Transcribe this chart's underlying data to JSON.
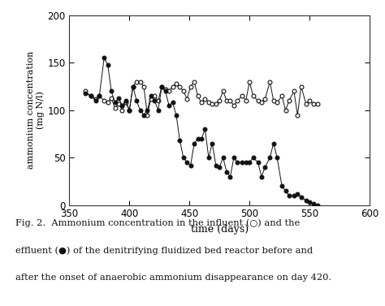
{
  "influent_x": [
    363,
    368,
    372,
    375,
    379,
    382,
    385,
    388,
    391,
    394,
    397,
    400,
    403,
    406,
    409,
    412,
    415,
    418,
    421,
    424,
    427,
    430,
    433,
    436,
    439,
    442,
    445,
    448,
    451,
    454,
    457,
    460,
    463,
    466,
    469,
    472,
    475,
    478,
    481,
    484,
    487,
    490,
    494,
    497,
    500,
    503,
    507,
    510,
    513,
    517,
    520,
    523,
    527,
    530,
    533,
    537,
    540,
    543,
    547,
    550,
    553,
    557
  ],
  "influent_y": [
    120,
    115,
    112,
    115,
    110,
    108,
    113,
    102,
    107,
    100,
    108,
    100,
    125,
    130,
    130,
    125,
    95,
    112,
    115,
    110,
    125,
    122,
    120,
    125,
    128,
    125,
    120,
    112,
    125,
    130,
    115,
    108,
    112,
    108,
    107,
    107,
    110,
    120,
    110,
    110,
    105,
    110,
    115,
    110,
    130,
    115,
    110,
    108,
    112,
    130,
    110,
    108,
    115,
    100,
    110,
    120,
    95,
    125,
    107,
    110,
    107,
    107
  ],
  "effluent_x": [
    363,
    368,
    372,
    375,
    379,
    382,
    385,
    388,
    391,
    394,
    397,
    400,
    403,
    406,
    409,
    412,
    415,
    418,
    421,
    424,
    427,
    430,
    433,
    436,
    439,
    442,
    445,
    448,
    451,
    454,
    457,
    460,
    463,
    466,
    469,
    472,
    475,
    478,
    481,
    484,
    487,
    490,
    494,
    497,
    500,
    503,
    507,
    510,
    513,
    517,
    520,
    523,
    527,
    530,
    533,
    537,
    540,
    543,
    547,
    550,
    553,
    557
  ],
  "effluent_y": [
    118,
    115,
    110,
    115,
    155,
    148,
    120,
    108,
    113,
    105,
    110,
    100,
    125,
    110,
    100,
    95,
    100,
    115,
    110,
    100,
    125,
    120,
    105,
    108,
    95,
    68,
    50,
    45,
    42,
    65,
    70,
    70,
    80,
    50,
    65,
    42,
    40,
    50,
    35,
    30,
    50,
    45,
    45,
    45,
    45,
    50,
    45,
    30,
    40,
    50,
    65,
    50,
    20,
    15,
    10,
    10,
    12,
    8,
    5,
    3,
    1,
    0
  ],
  "xlim": [
    350,
    600
  ],
  "ylim": [
    0,
    200
  ],
  "xticks": [
    350,
    400,
    450,
    500,
    550,
    600
  ],
  "yticks": [
    0,
    50,
    100,
    150,
    200
  ],
  "xlabel": "time (days)",
  "ylabel": "ammonium concentration\n(mg N/l)",
  "bg_color": "#ffffff",
  "line_color": "#111111",
  "figsize": [
    4.74,
    3.77
  ],
  "dpi": 100,
  "caption_line1": "Fig. 2.  Ammonium concentration in the influent (○) and the",
  "caption_line2": "effluent (●) of the denitrifying fluidized bed reactor before and",
  "caption_line3": "after the onset of anaerobic ammonium disappearance on day 420."
}
